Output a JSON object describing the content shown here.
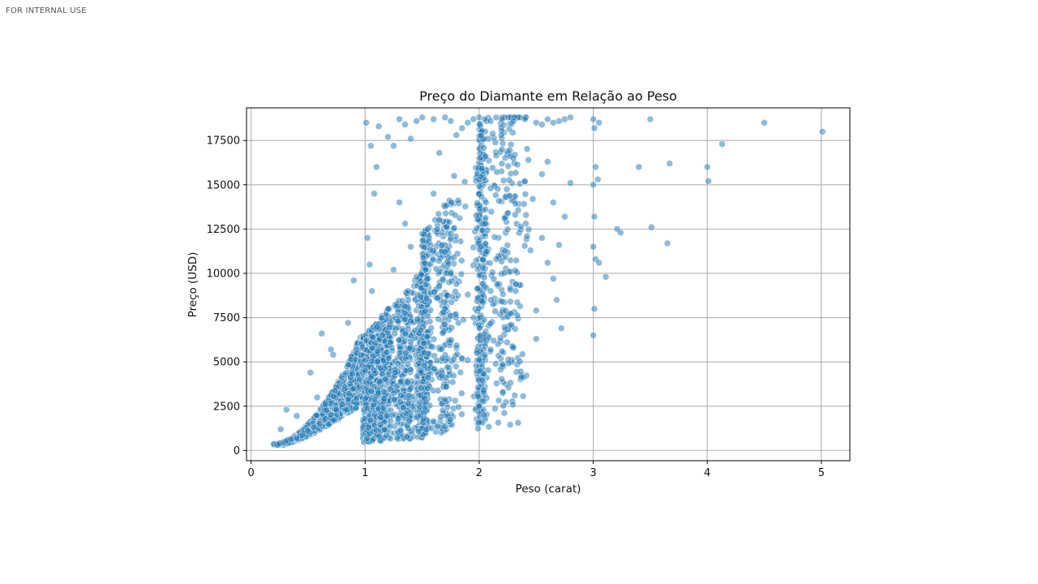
{
  "watermark": "FOR INTERNAL  USE",
  "chart_data": {
    "type": "scatter",
    "title": "Preço do Diamante em Relação ao Peso",
    "xlabel": "Peso (carat)",
    "ylabel": "Preço (USD)",
    "xlim": [
      -0.04,
      5.25
    ],
    "ylim": [
      -578,
      19340
    ],
    "xticks": [
      0,
      1,
      2,
      3,
      4,
      5
    ],
    "xtick_labels": [
      "0",
      "1",
      "2",
      "3",
      "4",
      "5"
    ],
    "yticks": [
      0,
      2500,
      5000,
      7500,
      10000,
      12500,
      15000,
      17500
    ],
    "ytick_labels": [
      "0",
      "2500",
      "5000",
      "7500",
      "10000",
      "12500",
      "15000",
      "17500"
    ],
    "grid": true,
    "marker_color": "#1f77b4",
    "marker_edge": "#ffffff",
    "marker_alpha": 0.5,
    "points": [
      [
        0.2,
        360
      ],
      [
        0.23,
        330
      ],
      [
        0.25,
        400
      ],
      [
        0.28,
        450
      ],
      [
        0.3,
        500
      ],
      [
        0.32,
        560
      ],
      [
        0.35,
        620
      ],
      [
        0.4,
        700
      ],
      [
        0.45,
        850
      ],
      [
        0.5,
        1100
      ],
      [
        0.55,
        1300
      ],
      [
        0.6,
        1500
      ],
      [
        0.65,
        1800
      ],
      [
        0.7,
        2000
      ],
      [
        0.75,
        2300
      ],
      [
        0.8,
        2600
      ],
      [
        0.85,
        2900
      ],
      [
        0.9,
        3500
      ],
      [
        0.95,
        4000
      ],
      [
        1.0,
        4500
      ],
      [
        0.62,
        6600
      ],
      [
        0.7,
        5700
      ],
      [
        0.9,
        9600
      ],
      [
        0.85,
        7200
      ],
      [
        0.52,
        4400
      ],
      [
        0.72,
        5400
      ],
      [
        0.31,
        2300
      ],
      [
        0.4,
        1950
      ],
      [
        0.26,
        1200
      ],
      [
        0.58,
        3000
      ],
      [
        1.01,
        18500
      ],
      [
        1.05,
        17200
      ],
      [
        1.1,
        16000
      ],
      [
        1.08,
        14500
      ],
      [
        1.02,
        12000
      ],
      [
        1.04,
        10500
      ],
      [
        1.06,
        9000
      ],
      [
        1.03,
        1300
      ],
      [
        1.12,
        18300
      ],
      [
        1.2,
        17700
      ],
      [
        1.25,
        17200
      ],
      [
        1.3,
        18700
      ],
      [
        1.35,
        18400
      ],
      [
        1.4,
        17600
      ],
      [
        1.45,
        18600
      ],
      [
        1.5,
        18800
      ],
      [
        1.52,
        2950
      ],
      [
        1.55,
        3500
      ],
      [
        1.6,
        18700
      ],
      [
        1.7,
        18800
      ],
      [
        1.75,
        18600
      ],
      [
        1.8,
        17800
      ],
      [
        1.85,
        18200
      ],
      [
        1.9,
        18500
      ],
      [
        1.95,
        18700
      ],
      [
        1.72,
        4700
      ],
      [
        1.85,
        5200
      ],
      [
        1.9,
        5100
      ],
      [
        1.98,
        5500
      ],
      [
        1.02,
        2400
      ],
      [
        2.0,
        18800
      ],
      [
        2.05,
        18700
      ],
      [
        2.1,
        18600
      ],
      [
        2.15,
        18800
      ],
      [
        2.2,
        18700
      ],
      [
        2.3,
        18600
      ],
      [
        2.4,
        18700
      ],
      [
        2.5,
        18500
      ],
      [
        2.55,
        18400
      ],
      [
        2.6,
        18700
      ],
      [
        2.65,
        18500
      ],
      [
        2.7,
        18600
      ],
      [
        2.75,
        18700
      ],
      [
        2.8,
        18800
      ],
      [
        2.0,
        5100
      ],
      [
        2.05,
        5400
      ],
      [
        2.1,
        5700
      ],
      [
        2.2,
        5600
      ],
      [
        2.3,
        5800
      ],
      [
        2.5,
        6300
      ],
      [
        2.6,
        10600
      ],
      [
        2.65,
        9700
      ],
      [
        2.7,
        11600
      ],
      [
        2.72,
        6900
      ],
      [
        2.75,
        13200
      ],
      [
        2.8,
        15100
      ],
      [
        2.68,
        8500
      ],
      [
        2.5,
        7900
      ],
      [
        2.45,
        11300
      ],
      [
        2.55,
        12000
      ],
      [
        3.0,
        18700
      ],
      [
        3.01,
        18200
      ],
      [
        3.02,
        16000
      ],
      [
        3.0,
        15000
      ],
      [
        3.01,
        13200
      ],
      [
        3.0,
        11500
      ],
      [
        3.02,
        10800
      ],
      [
        3.01,
        8000
      ],
      [
        3.0,
        6500
      ],
      [
        3.04,
        15300
      ],
      [
        3.05,
        18500
      ],
      [
        3.05,
        10600
      ],
      [
        3.11,
        9800
      ],
      [
        3.21,
        12500
      ],
      [
        3.24,
        12300
      ],
      [
        3.4,
        16000
      ],
      [
        3.5,
        18700
      ],
      [
        3.51,
        12600
      ],
      [
        3.65,
        11700
      ],
      [
        3.67,
        16200
      ],
      [
        4.0,
        16000
      ],
      [
        4.01,
        15200
      ],
      [
        4.13,
        17300
      ],
      [
        4.5,
        18500
      ],
      [
        5.01,
        18000
      ],
      [
        2.2,
        17000
      ],
      [
        2.3,
        16500
      ],
      [
        2.4,
        15200
      ],
      [
        2.1,
        14800
      ],
      [
        2.25,
        13400
      ],
      [
        1.6,
        14500
      ],
      [
        1.65,
        13000
      ],
      [
        1.7,
        11200
      ],
      [
        1.75,
        10000
      ],
      [
        1.8,
        9400
      ],
      [
        1.9,
        8800
      ],
      [
        1.95,
        7500
      ],
      [
        1.55,
        12500
      ],
      [
        1.65,
        16800
      ],
      [
        1.78,
        15500
      ],
      [
        1.3,
        14000
      ],
      [
        1.35,
        12800
      ],
      [
        1.4,
        11500
      ],
      [
        1.25,
        10200
      ],
      [
        1.2,
        8000
      ],
      [
        1.15,
        6500
      ],
      [
        1.3,
        5500
      ],
      [
        1.35,
        4500
      ],
      [
        1.4,
        7300
      ],
      [
        1.45,
        9800
      ],
      [
        2.1,
        9000
      ],
      [
        2.15,
        10800
      ],
      [
        2.2,
        8400
      ],
      [
        2.28,
        7100
      ],
      [
        2.32,
        9000
      ],
      [
        2.42,
        12100
      ],
      [
        2.47,
        14200
      ],
      [
        2.55,
        15600
      ],
      [
        2.6,
        16300
      ],
      [
        2.65,
        14000
      ]
    ]
  }
}
